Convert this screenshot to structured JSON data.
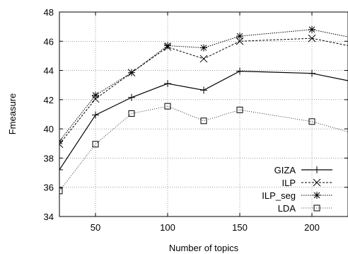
{
  "chart_data": {
    "type": "line",
    "title": "",
    "xlabel": "Number of topics",
    "ylabel": "Fmeasure",
    "xlim": [
      25,
      225
    ],
    "ylim": [
      34,
      48
    ],
    "x_ticks": [
      50,
      100,
      150,
      200
    ],
    "y_ticks": [
      34,
      36,
      38,
      40,
      42,
      44,
      46,
      48
    ],
    "grid": true,
    "legend_position": "bottom-right",
    "x": [
      25,
      50,
      75,
      100,
      125,
      150,
      200,
      225
    ],
    "series": [
      {
        "name": "GIZA",
        "marker": "plus",
        "dash": "solid",
        "values": [
          37.2,
          40.95,
          42.15,
          43.1,
          42.65,
          43.95,
          43.8,
          43.3
        ]
      },
      {
        "name": "ILP",
        "marker": "x",
        "dash": "dashed",
        "values": [
          38.95,
          42.05,
          43.85,
          45.6,
          44.8,
          46.0,
          46.2,
          45.7
        ]
      },
      {
        "name": "ILP_seg",
        "marker": "asterisk",
        "dash": "dotted",
        "values": [
          39.15,
          42.3,
          43.85,
          45.7,
          45.55,
          46.35,
          46.8,
          46.3
        ]
      },
      {
        "name": "LDA",
        "marker": "square",
        "dash": "fine-dotted",
        "values": [
          35.75,
          38.95,
          41.05,
          41.55,
          40.55,
          41.3,
          40.5,
          39.8
        ]
      }
    ]
  }
}
